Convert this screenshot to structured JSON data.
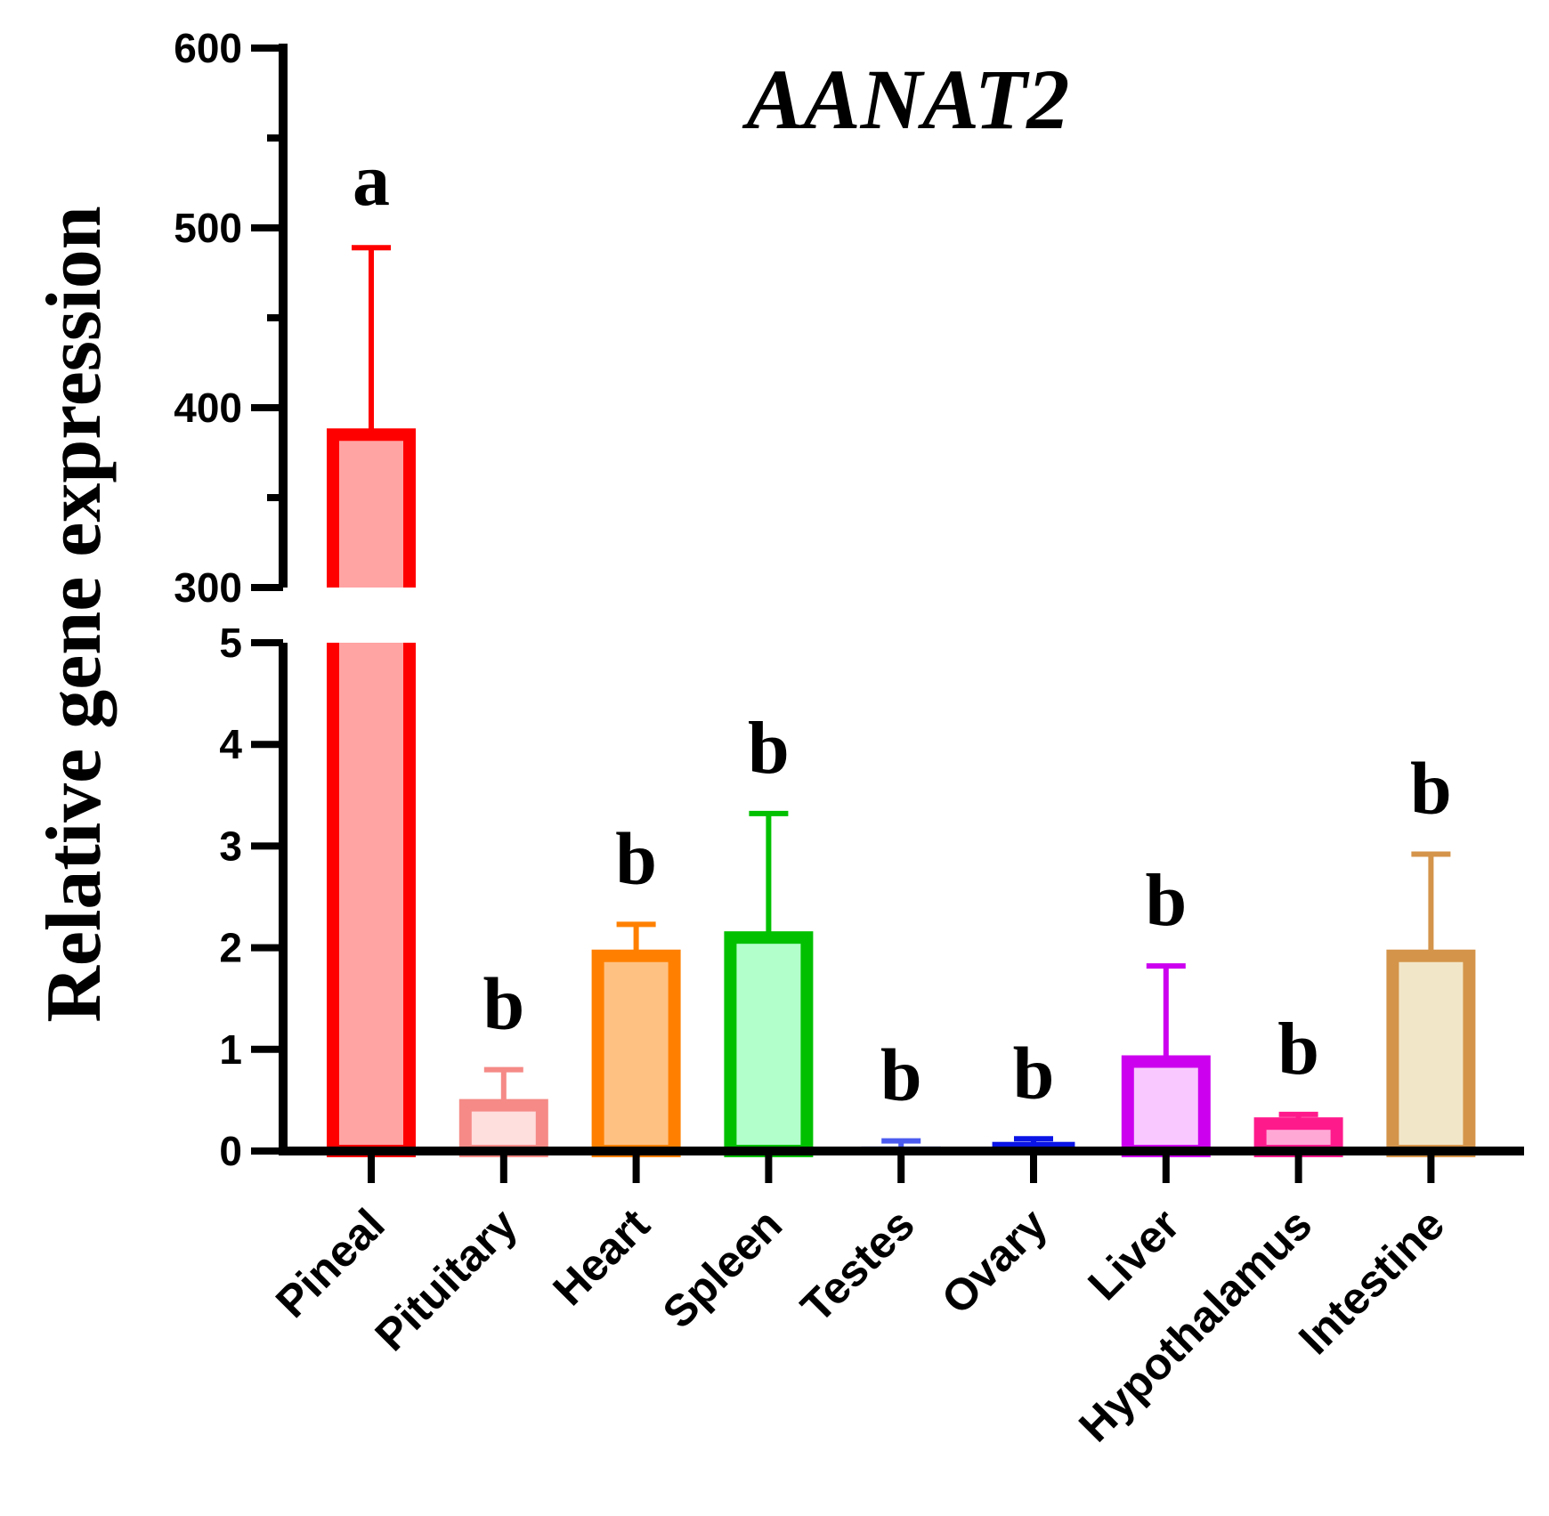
{
  "chart_data": {
    "type": "bar",
    "title": "AANAT2",
    "xlabel": "",
    "ylabel": "Relative gene expression",
    "axis_break": {
      "lower_range": [
        0,
        5
      ],
      "upper_range": [
        300,
        600
      ],
      "lower_ticks": [
        "0",
        "1",
        "2",
        "3",
        "4",
        "5"
      ],
      "upper_ticks": [
        "300",
        "400",
        "500",
        "600"
      ]
    },
    "categories": [
      "Pineal",
      "Pituitary",
      "Heart",
      "Spleen",
      "Testes",
      "Ovary",
      "Liver",
      "Hypothalamus",
      "Intestine"
    ],
    "values": [
      385,
      0.45,
      1.92,
      2.1,
      0.03,
      0.06,
      0.88,
      0.27,
      1.92
    ],
    "error_upper": [
      489,
      0.8,
      2.23,
      3.32,
      0.1,
      0.12,
      1.82,
      0.36,
      2.92
    ],
    "significance": [
      "a",
      "b",
      "b",
      "b",
      "b",
      "b",
      "b",
      "b",
      "b"
    ],
    "colors": {
      "stroke": [
        "#ff0000",
        "#f58a86",
        "#ff8000",
        "#00c000",
        "#4b5bf0",
        "#0a14e6",
        "#cc00ee",
        "#ff1a8c",
        "#d4944a"
      ],
      "fill": [
        "#ffa3a3",
        "#ffdede",
        "#ffc182",
        "#b3ffcc",
        "#cfd3ff",
        "#c8cbff",
        "#f8c8ff",
        "#ffa8d6",
        "#f2e6c8"
      ]
    }
  }
}
